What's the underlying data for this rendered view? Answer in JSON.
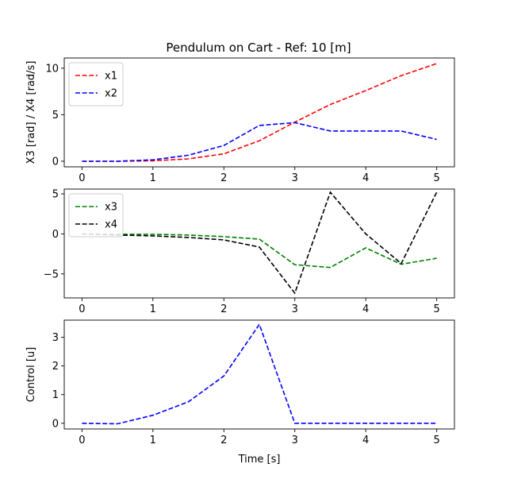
{
  "title": "Pendulum on Cart - Ref: 10 [m]",
  "chart_data": [
    {
      "type": "line",
      "ylabel": "X3 [rad] / X4 [rad/s]",
      "xlabel": "",
      "xlim": [
        -0.25,
        5.25
      ],
      "ylim": [
        -0.6,
        11.1
      ],
      "x_ticks": [
        0,
        1,
        2,
        3,
        4,
        5
      ],
      "y_ticks": [
        0,
        5,
        10
      ],
      "legend": "top-left",
      "x": [
        0,
        0.5,
        1,
        1.5,
        2,
        2.5,
        3,
        3.5,
        4,
        4.5,
        5
      ],
      "series": [
        {
          "name": "x1",
          "color": "#ff0000",
          "values": [
            0,
            0,
            0.05,
            0.25,
            0.8,
            2.2,
            4.2,
            6.1,
            7.6,
            9.2,
            10.5
          ]
        },
        {
          "name": "x2",
          "color": "#0000ff",
          "values": [
            0,
            0,
            0.15,
            0.65,
            1.7,
            3.85,
            4.15,
            3.25,
            3.25,
            3.25,
            2.35
          ]
        }
      ]
    },
    {
      "type": "line",
      "ylabel": "",
      "xlabel": "",
      "xlim": [
        -0.25,
        5.25
      ],
      "ylim": [
        -8.0,
        5.6
      ],
      "x_ticks": [
        0,
        1,
        2,
        3,
        4,
        5
      ],
      "y_ticks": [
        -5,
        0,
        5
      ],
      "legend": "top-left",
      "x": [
        0,
        0.5,
        1,
        1.5,
        2,
        2.5,
        3,
        3.5,
        4,
        4.5,
        5
      ],
      "series": [
        {
          "name": "x3",
          "color": "#008000",
          "values": [
            0,
            -0.05,
            -0.05,
            -0.15,
            -0.35,
            -0.65,
            -3.85,
            -4.2,
            -1.75,
            -3.8,
            -3.05
          ]
        },
        {
          "name": "x4",
          "color": "#000000",
          "values": [
            0,
            -0.15,
            -0.25,
            -0.45,
            -0.75,
            -1.65,
            -7.4,
            5.2,
            0,
            -3.7,
            5.2
          ]
        }
      ]
    },
    {
      "type": "line",
      "ylabel": "Control [u]",
      "xlabel": "Time [s]",
      "xlim": [
        -0.25,
        5.25
      ],
      "ylim": [
        -0.2,
        3.6
      ],
      "x_ticks": [
        0,
        1,
        2,
        3,
        4,
        5
      ],
      "y_ticks": [
        0,
        1,
        2,
        3
      ],
      "legend": "none",
      "x": [
        0,
        0.5,
        1,
        1.5,
        2,
        2.5,
        3,
        3.5,
        4,
        4.5,
        5
      ],
      "series": [
        {
          "color": "#0000ff",
          "values": [
            0,
            -0.02,
            0.28,
            0.75,
            1.65,
            3.45,
            0,
            0,
            0,
            0,
            0
          ]
        }
      ]
    }
  ]
}
